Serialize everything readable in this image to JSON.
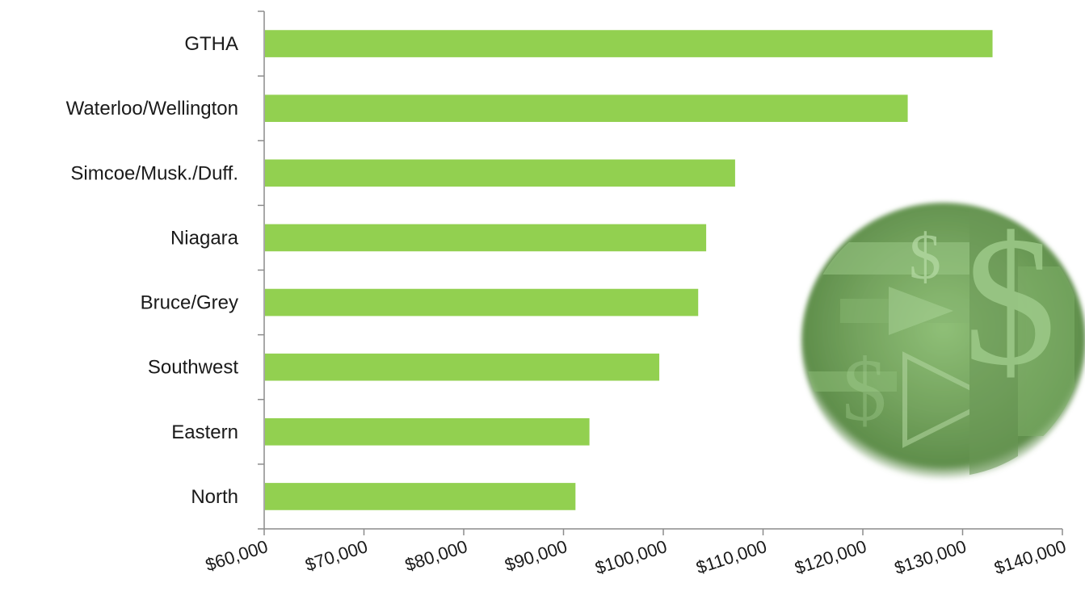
{
  "chart_data": {
    "type": "bar",
    "orientation": "horizontal",
    "categories": [
      "GTHA",
      "Waterloo/Wellington",
      "Simcoe/Musk./Duff.",
      "Niagara",
      "Bruce/Grey",
      "Southwest",
      "Eastern",
      "North"
    ],
    "values": [
      133000,
      124500,
      107200,
      104300,
      103500,
      99600,
      92600,
      91200
    ],
    "xlim": [
      60000,
      140000
    ],
    "x_ticks": [
      60000,
      70000,
      80000,
      90000,
      100000,
      110000,
      120000,
      130000,
      140000
    ],
    "x_tick_labels": [
      "$60,000",
      "$70,000",
      "$80,000",
      "$90,000",
      "$100,000",
      "$110,000",
      "$120,000",
      "$130,000",
      "$140,000"
    ],
    "title": "",
    "xlabel": "",
    "ylabel": "",
    "grid": false,
    "legend": "none",
    "bar_color": "#92d050"
  },
  "decoration": {
    "image": "green-dollar-sign-circle",
    "color": "#6f9e5a"
  }
}
